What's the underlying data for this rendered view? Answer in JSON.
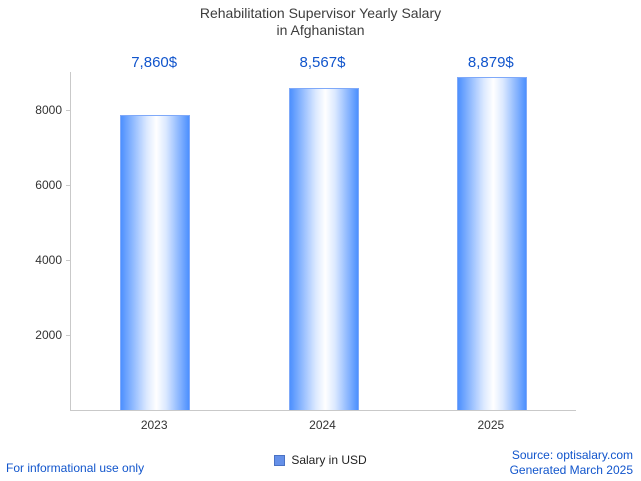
{
  "title": {
    "line1": "Rehabilitation Supervisor Yearly Salary",
    "line2": "in Afghanistan"
  },
  "chart_data": {
    "type": "bar",
    "title": "Rehabilitation Supervisor Yearly Salary in Afghanistan",
    "categories": [
      "2023",
      "2024",
      "2025"
    ],
    "values": [
      7860,
      8567,
      8879
    ],
    "value_labels": [
      "7,860$",
      "8,567$",
      "8,879$"
    ],
    "series_name": "Salary in USD",
    "xlabel": "",
    "ylabel": "",
    "ylim": [
      0,
      9000
    ],
    "yticks": [
      2000,
      4000,
      6000,
      8000
    ],
    "grid": false,
    "legend_position": "bottom"
  },
  "legend": {
    "label": "Salary in USD",
    "swatch_color": "#6590e8"
  },
  "footer": {
    "left": "For informational use only",
    "source": "Source: optisalary.com",
    "generated": "Generated March 2025"
  },
  "colors": {
    "bar_edge": "#4d90fe",
    "bar_center": "#ffffff",
    "value_label": "#1155cc",
    "axis": "#c9c9c9",
    "title_text": "#3d3d3d"
  }
}
